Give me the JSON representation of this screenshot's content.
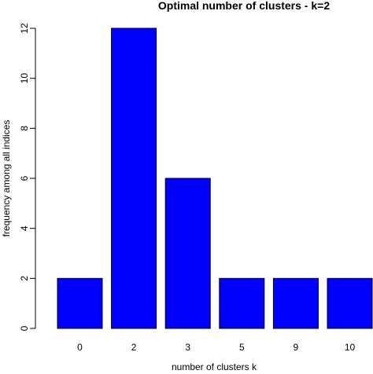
{
  "chart_data": {
    "type": "bar",
    "title": "Optimal number of clusters - k=2",
    "xlabel": "number of clusters k",
    "ylabel": "frequency among all indices",
    "categories": [
      "0",
      "2",
      "3",
      "5",
      "9",
      "10"
    ],
    "values": [
      2,
      12,
      6,
      2,
      2,
      2
    ],
    "ylim": [
      0,
      12
    ],
    "yticks": [
      "0",
      "2",
      "4",
      "6",
      "8",
      "10",
      "12"
    ],
    "bar_color": "#0000ff",
    "grid": false,
    "legend": "none"
  }
}
